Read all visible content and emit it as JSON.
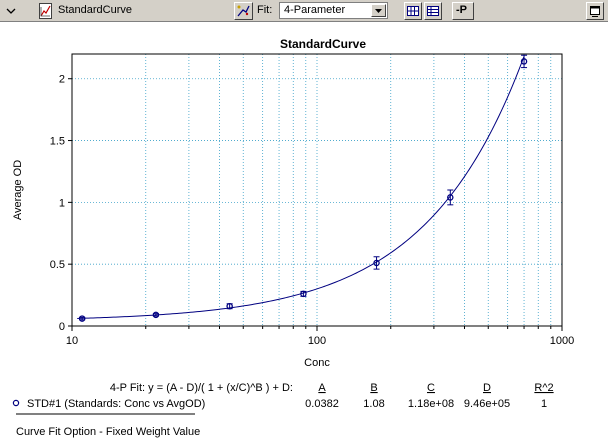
{
  "toolbar": {
    "title": "StandardCurve",
    "fit_label": "Fit:",
    "fit_value": "4-Parameter",
    "reduce_label": "-P"
  },
  "chart_data": {
    "type": "scatter",
    "title": "StandardCurve",
    "xlabel": "Conc",
    "ylabel": "Average OD",
    "xscale": "log",
    "xlim": [
      10,
      1000
    ],
    "ylim": [
      0,
      2.2
    ],
    "xticks": [
      "10",
      "100",
      "1000"
    ],
    "yticks": [
      "0",
      "0.5",
      "1",
      "1.5",
      "2"
    ],
    "grid": true,
    "series": [
      {
        "name": "STD#1 (Standards: Conc vs AvgOD)",
        "x": [
          11,
          22,
          44,
          88,
          175,
          350,
          700
        ],
        "y": [
          0.06,
          0.09,
          0.16,
          0.26,
          0.51,
          1.04,
          2.14
        ],
        "err": [
          0.01,
          0.01,
          0.02,
          0.02,
          0.05,
          0.06,
          0.05
        ],
        "color": "#000080"
      }
    ],
    "fit": {
      "A": 0.0382,
      "B": 1.08,
      "C": 118000000,
      "D": 946000
    }
  },
  "legend": {
    "equation": "4-P Fit: y = (A - D)/( 1 + (x/C)^B ) + D:",
    "headers": [
      "A",
      "B",
      "C",
      "D",
      "R^2"
    ],
    "values": [
      "0.0382",
      "1.08",
      "1.18e+08",
      "9.46e+05",
      "1"
    ],
    "series_label": "STD#1 (Standards: Conc vs AvgOD)"
  },
  "footer": {
    "note": "Curve Fit Option - Fixed Weight Value"
  },
  "colors": {
    "series": "#000080",
    "grid": "#3aa0c8",
    "toolbar": "#d4d0c8"
  }
}
